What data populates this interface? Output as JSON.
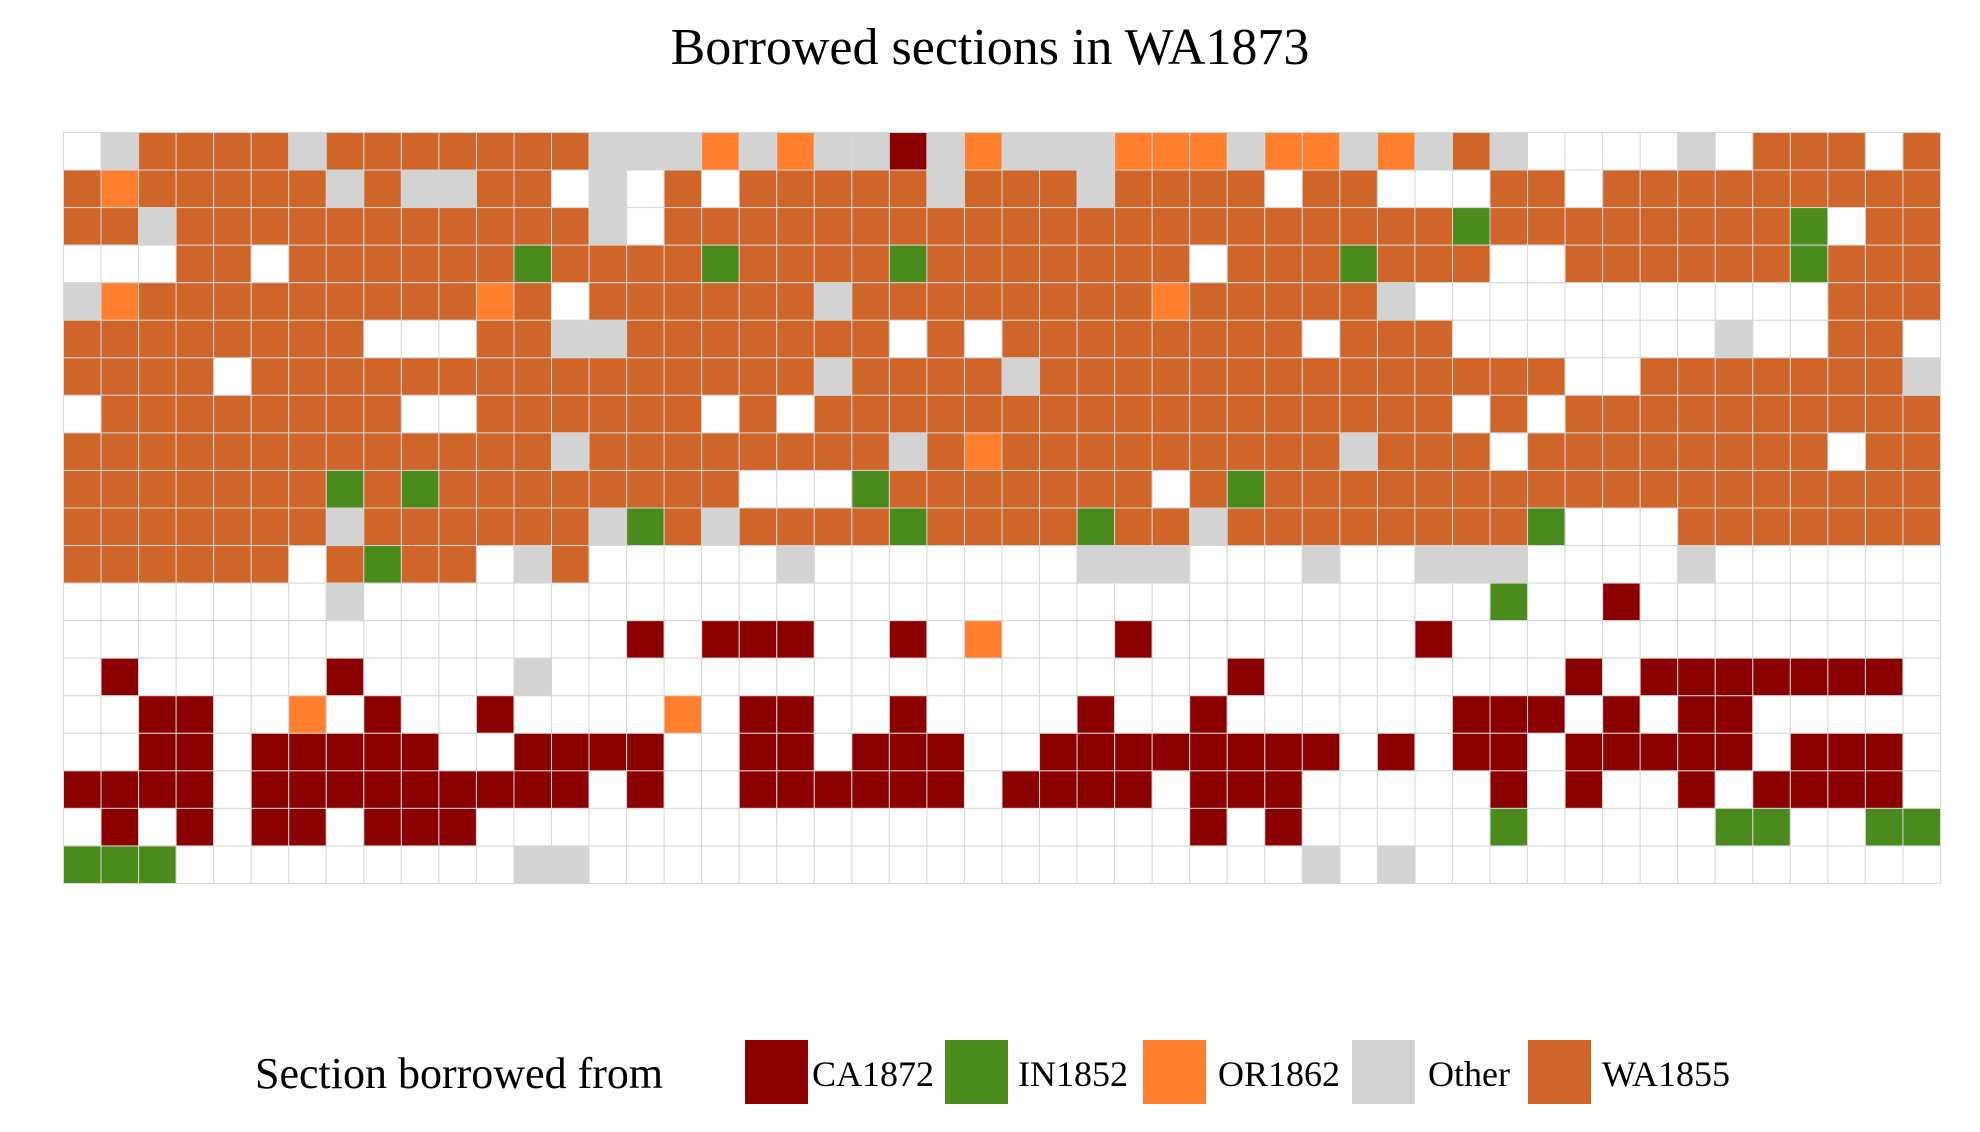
{
  "chart_data": {
    "type": "heatmap",
    "title": "Borrowed sections in WA1873",
    "columns": 50,
    "rows": 20,
    "legend": {
      "title": "Section borrowed from",
      "position": "bottom",
      "entries": [
        {
          "key": "C",
          "label": "CA1872",
          "color": "#8b0000"
        },
        {
          "key": "I",
          "label": "IN1852",
          "color": "#4b8a1c"
        },
        {
          "key": "O",
          "label": "OR1862",
          "color": "#ff7f2f"
        },
        {
          "key": "G",
          "label": "Other",
          "color": "#d3d3d3"
        },
        {
          "key": "W",
          "label": "WA1855",
          "color": "#d0652a"
        }
      ]
    },
    "empty_color": "#ffffff",
    "grid_line_color": "#d6d6d6",
    "cells": [
      ".GWWWWGWWWWWWWGGGOGOGGCGOGGGOOOGOOGOGWG....G.WWW.W",
      "WOWWWWWGWGGWW.G.W.WWWWWGWWWGWWWW.WW...WW.WWWWWWWWW",
      "WWGWWWWWWWWWWWG.WWWWWWWWWWWWWWWWWWWWWIWWWWWWWWI.WW",
      "...WW.WWWWWWIWWWWIWWWWIWWWWWWW.WWWIWWW..WWWWWWIWWW",
      "GOWWWWWWWWWOW.WWWWWWGWWWWWWWWOWWWWWG...........WWW",
      "WWWWWWWW...WWGGWWWWWWW.W.WWWWWWWW.WWW.......G..WW.",
      "WWWW.WWWWWWWWWWWWWWWGWWWWGWWWWWWWWWWWWWW..WWWWWWWG",
      ".WWWWWWWW..WWWWWW.W.WWWWWWWWWWWWWWWWW.W.WWWWWWWWWW",
      "WWWWWWWWWWWWWGWWWWWWWWGWOWWWWWWWWWGWWW.WWWWWWWW.WW",
      "WWWWWWWIWIWWWWWWWW...IWWWWWWW.WIWWWWWWWWWWWWWWWWWW",
      "WWWWWWWGWWWWWWGIWGWWWWIWWWWIWWGWWWWWWWWI...WWWWWWW",
      "WWWWWW.WIWW.GW.....G.......GGG...G..GGG....G......",
      ".......G..............................I..C........",
      "...............C.CCC..C.O...C.......C.............",
      ".C.....C....G..................C........C.CCCCCCC.",
      "..CC..O.C..C....O.CC..C....C..C......CCC.C.CC.....",
      "..CC.CCCCC..CCCC..CC.CCC..CCCCCCCC.C.CC.CCCCC.CCC.",
      "CCCC.CCCCCCCCC.C..CCCCCC.CCCC.CCC.....C.C..C.CCCC.",
      ".C.C.CC.CCC...................C.C.....I.....II..II",
      "III.........GG...................G.G..............G"
    ]
  }
}
